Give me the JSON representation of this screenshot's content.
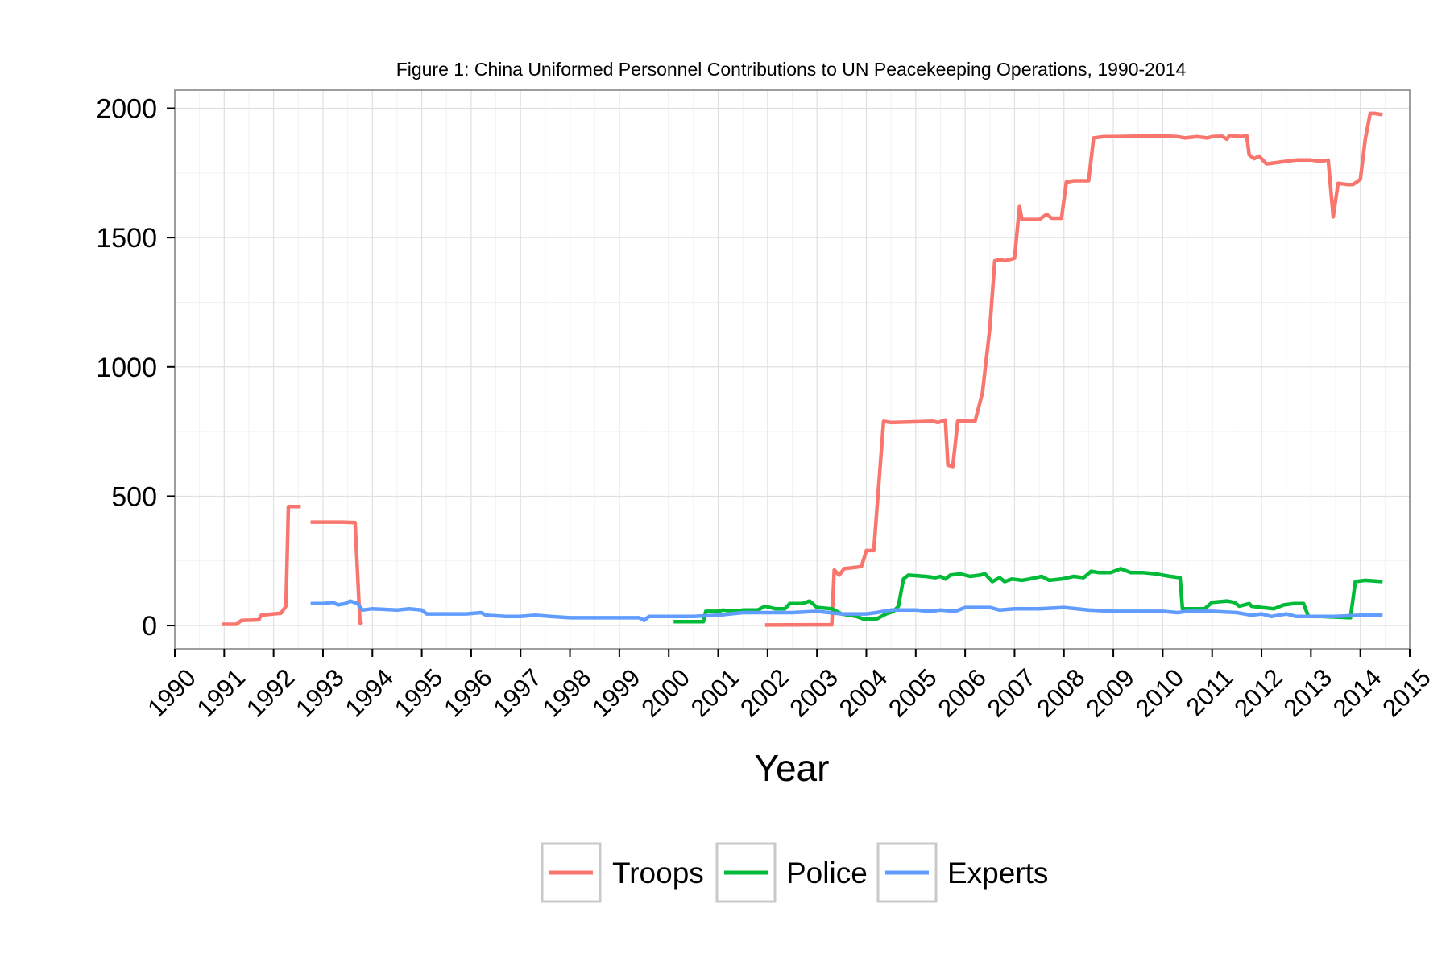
{
  "chart_data": {
    "type": "line",
    "title": "Figure 1: China Uniformed Personnel Contributions to UN Peacekeeping Operations, 1990-2014",
    "xlabel": "Year",
    "ylabel": "",
    "xlim": [
      1990,
      2015
    ],
    "ylim": [
      -90,
      2070
    ],
    "x_ticks": [
      "1990",
      "1991",
      "1992",
      "1993",
      "1994",
      "1995",
      "1996",
      "1997",
      "1998",
      "1999",
      "2000",
      "2001",
      "2002",
      "2003",
      "2004",
      "2005",
      "2006",
      "2007",
      "2008",
      "2009",
      "2010",
      "2011",
      "2012",
      "2013",
      "2014",
      "2015"
    ],
    "y_ticks": [
      "0",
      "500",
      "1000",
      "1500",
      "2000"
    ],
    "grid": true,
    "legend": {
      "position": "bottom",
      "entries": [
        "Troops",
        "Police",
        "Experts"
      ]
    },
    "series": [
      {
        "name": "Troops",
        "color": "#F8766D",
        "segments": [
          [
            [
              1990.95,
              5
            ],
            [
              1991.25,
              5
            ],
            [
              1991.35,
              20
            ],
            [
              1991.7,
              22
            ],
            [
              1991.75,
              40
            ],
            [
              1992.0,
              45
            ],
            [
              1992.15,
              48
            ],
            [
              1992.25,
              75
            ],
            [
              1992.3,
              460
            ],
            [
              1992.55,
              460
            ]
          ],
          [
            [
              1992.75,
              400
            ],
            [
              1993.25,
              400
            ],
            [
              1993.4,
              400
            ],
            [
              1993.65,
              398
            ],
            [
              1993.75,
              10
            ],
            [
              1993.8,
              5
            ]
          ],
          [
            [
              2001.95,
              2
            ],
            [
              2003.3,
              3
            ],
            [
              2003.35,
              215
            ],
            [
              2003.45,
              195
            ],
            [
              2003.55,
              220
            ],
            [
              2003.9,
              228
            ],
            [
              2004.0,
              290
            ],
            [
              2004.15,
              290
            ],
            [
              2004.35,
              790
            ],
            [
              2004.5,
              785
            ],
            [
              2005.35,
              790
            ],
            [
              2005.45,
              785
            ],
            [
              2005.6,
              795
            ],
            [
              2005.65,
              620
            ],
            [
              2005.75,
              615
            ],
            [
              2005.85,
              790
            ],
            [
              2006.2,
              790
            ],
            [
              2006.35,
              900
            ],
            [
              2006.5,
              1150
            ],
            [
              2006.6,
              1410
            ],
            [
              2006.7,
              1415
            ],
            [
              2006.8,
              1410
            ],
            [
              2007.0,
              1420
            ],
            [
              2007.1,
              1620
            ],
            [
              2007.15,
              1570
            ],
            [
              2007.5,
              1570
            ],
            [
              2007.65,
              1590
            ],
            [
              2007.75,
              1575
            ],
            [
              2007.95,
              1575
            ],
            [
              2008.05,
              1715
            ],
            [
              2008.2,
              1720
            ],
            [
              2008.5,
              1720
            ],
            [
              2008.6,
              1885
            ],
            [
              2008.8,
              1890
            ],
            [
              2009.0,
              1890
            ],
            [
              2009.5,
              1892
            ],
            [
              2010.0,
              1893
            ],
            [
              2010.3,
              1890
            ],
            [
              2010.45,
              1885
            ],
            [
              2010.7,
              1890
            ],
            [
              2010.9,
              1885
            ],
            [
              2011.0,
              1890
            ],
            [
              2011.2,
              1892
            ],
            [
              2011.3,
              1880
            ],
            [
              2011.35,
              1895
            ],
            [
              2011.6,
              1890
            ],
            [
              2011.7,
              1895
            ],
            [
              2011.75,
              1820
            ],
            [
              2011.85,
              1805
            ],
            [
              2011.95,
              1815
            ],
            [
              2012.1,
              1785
            ],
            [
              2012.3,
              1790
            ],
            [
              2012.5,
              1795
            ],
            [
              2012.7,
              1800
            ],
            [
              2013.0,
              1800
            ],
            [
              2013.2,
              1795
            ],
            [
              2013.35,
              1800
            ],
            [
              2013.45,
              1580
            ],
            [
              2013.55,
              1710
            ],
            [
              2013.75,
              1705
            ],
            [
              2013.85,
              1705
            ],
            [
              2014.0,
              1725
            ],
            [
              2014.1,
              1880
            ],
            [
              2014.2,
              1980
            ],
            [
              2014.3,
              1980
            ],
            [
              2014.45,
              1975
            ]
          ]
        ]
      },
      {
        "name": "Police",
        "color": "#00BA38",
        "segments": [
          [
            [
              2000.1,
              15
            ],
            [
              2000.5,
              15
            ],
            [
              2000.7,
              15
            ],
            [
              2000.75,
              55
            ],
            [
              2001.0,
              55
            ],
            [
              2001.1,
              60
            ],
            [
              2001.3,
              55
            ],
            [
              2001.5,
              60
            ],
            [
              2001.8,
              60
            ],
            [
              2001.95,
              75
            ],
            [
              2002.15,
              65
            ],
            [
              2002.35,
              65
            ],
            [
              2002.45,
              85
            ],
            [
              2002.7,
              85
            ],
            [
              2002.85,
              95
            ],
            [
              2003.0,
              70
            ],
            [
              2003.3,
              65
            ],
            [
              2003.5,
              45
            ],
            [
              2003.8,
              35
            ],
            [
              2003.95,
              25
            ],
            [
              2004.2,
              25
            ],
            [
              2004.4,
              45
            ],
            [
              2004.55,
              55
            ],
            [
              2004.65,
              75
            ],
            [
              2004.75,
              180
            ],
            [
              2004.85,
              195
            ],
            [
              2005.2,
              190
            ],
            [
              2005.4,
              185
            ],
            [
              2005.5,
              190
            ],
            [
              2005.6,
              180
            ],
            [
              2005.7,
              195
            ],
            [
              2005.9,
              200
            ],
            [
              2006.1,
              190
            ],
            [
              2006.3,
              195
            ],
            [
              2006.4,
              200
            ],
            [
              2006.55,
              170
            ],
            [
              2006.7,
              185
            ],
            [
              2006.8,
              170
            ],
            [
              2006.95,
              180
            ],
            [
              2007.15,
              175
            ],
            [
              2007.3,
              180
            ],
            [
              2007.55,
              190
            ],
            [
              2007.7,
              175
            ],
            [
              2007.95,
              180
            ],
            [
              2008.2,
              190
            ],
            [
              2008.4,
              185
            ],
            [
              2008.55,
              210
            ],
            [
              2008.7,
              205
            ],
            [
              2008.95,
              205
            ],
            [
              2009.15,
              220
            ],
            [
              2009.35,
              205
            ],
            [
              2009.6,
              205
            ],
            [
              2009.85,
              200
            ],
            [
              2010.0,
              195
            ],
            [
              2010.15,
              190
            ],
            [
              2010.35,
              185
            ],
            [
              2010.4,
              65
            ],
            [
              2010.6,
              65
            ],
            [
              2010.85,
              65
            ],
            [
              2011.0,
              90
            ],
            [
              2011.3,
              95
            ],
            [
              2011.45,
              90
            ],
            [
              2011.55,
              75
            ],
            [
              2011.75,
              85
            ],
            [
              2011.8,
              75
            ],
            [
              2012.0,
              70
            ],
            [
              2012.25,
              65
            ],
            [
              2012.45,
              80
            ],
            [
              2012.65,
              85
            ],
            [
              2012.85,
              85
            ],
            [
              2012.95,
              35
            ],
            [
              2013.2,
              35
            ],
            [
              2013.8,
              30
            ],
            [
              2013.9,
              170
            ],
            [
              2014.1,
              175
            ],
            [
              2014.45,
              170
            ]
          ]
        ]
      },
      {
        "name": "Experts",
        "color": "#619CFF",
        "segments": [
          [
            [
              1992.75,
              85
            ],
            [
              1993.0,
              85
            ],
            [
              1993.2,
              90
            ],
            [
              1993.3,
              80
            ],
            [
              1993.45,
              85
            ],
            [
              1993.55,
              95
            ],
            [
              1993.7,
              85
            ],
            [
              1993.8,
              60
            ],
            [
              1994.0,
              65
            ],
            [
              1994.5,
              60
            ],
            [
              1994.75,
              65
            ],
            [
              1995.0,
              60
            ],
            [
              1995.1,
              45
            ],
            [
              1995.5,
              45
            ],
            [
              1995.9,
              45
            ],
            [
              1996.2,
              50
            ],
            [
              1996.3,
              40
            ],
            [
              1996.7,
              35
            ],
            [
              1997.0,
              35
            ],
            [
              1997.3,
              40
            ],
            [
              1997.6,
              35
            ],
            [
              1998.0,
              30
            ],
            [
              1998.5,
              30
            ],
            [
              1999.0,
              30
            ],
            [
              1999.4,
              30
            ],
            [
              1999.5,
              20
            ],
            [
              1999.6,
              35
            ],
            [
              2000.0,
              35
            ],
            [
              2000.5,
              35
            ],
            [
              2001.0,
              40
            ],
            [
              2001.5,
              50
            ],
            [
              2002.0,
              50
            ],
            [
              2002.5,
              50
            ],
            [
              2003.0,
              55
            ],
            [
              2003.5,
              45
            ],
            [
              2004.0,
              45
            ],
            [
              2004.2,
              50
            ],
            [
              2004.5,
              60
            ],
            [
              2005.0,
              60
            ],
            [
              2005.3,
              55
            ],
            [
              2005.5,
              60
            ],
            [
              2005.8,
              55
            ],
            [
              2006.0,
              70
            ],
            [
              2006.5,
              70
            ],
            [
              2006.7,
              60
            ],
            [
              2007.0,
              65
            ],
            [
              2007.5,
              65
            ],
            [
              2008.0,
              70
            ],
            [
              2008.5,
              60
            ],
            [
              2009.0,
              55
            ],
            [
              2009.5,
              55
            ],
            [
              2010.0,
              55
            ],
            [
              2010.3,
              50
            ],
            [
              2010.5,
              55
            ],
            [
              2011.0,
              55
            ],
            [
              2011.5,
              50
            ],
            [
              2011.8,
              40
            ],
            [
              2012.0,
              45
            ],
            [
              2012.2,
              35
            ],
            [
              2012.5,
              45
            ],
            [
              2012.7,
              35
            ],
            [
              2013.0,
              35
            ],
            [
              2013.5,
              35
            ],
            [
              2014.0,
              40
            ],
            [
              2014.45,
              40
            ]
          ]
        ]
      }
    ]
  }
}
